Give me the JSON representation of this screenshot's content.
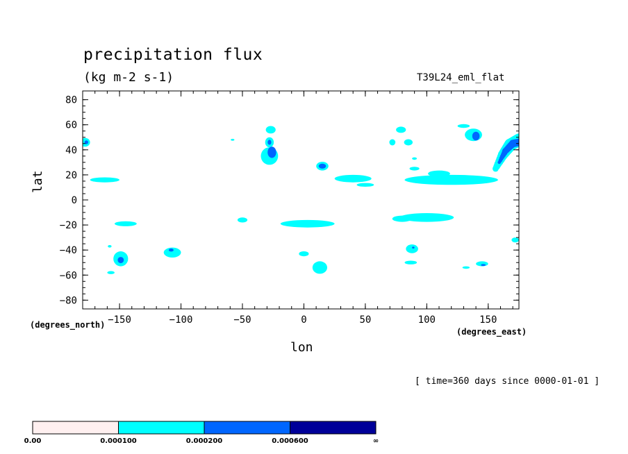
{
  "chart_data": {
    "type": "contour-map",
    "title": "precipitation flux",
    "units": "(kg m-2 s-1)",
    "experiment": "T39L24_eml_flat",
    "xlabel": "lon",
    "ylabel": "lat",
    "x_coord_units": "(degrees_east)",
    "y_coord_units": "(degrees_north)",
    "xlim": [
      -180,
      175
    ],
    "ylim": [
      -87,
      87
    ],
    "xticks": [
      -150,
      -100,
      -50,
      0,
      50,
      100,
      150
    ],
    "yticks": [
      80,
      60,
      40,
      20,
      0,
      -20,
      -40,
      -60,
      -80
    ],
    "time_label": "[ time=360 days since 0000-01-01 ]",
    "levels": [
      0.0,
      0.0001,
      0.0002,
      0.0006
    ],
    "colorbar": {
      "labels": [
        "0.00",
        "0.000100",
        "0.000200",
        "0.000600",
        "∞"
      ],
      "colors": [
        "#fff0f0",
        "#00ffff",
        "#0066ff",
        "#000099"
      ]
    },
    "regions": [
      {
        "lon": -178,
        "lat": 46,
        "rlon": 4,
        "rlat": 3.5,
        "level": 1
      },
      {
        "lon": -177,
        "lat": 46,
        "rlon": 1.5,
        "rlat": 1.5,
        "level": 2
      },
      {
        "lon": -162,
        "lat": 16,
        "rlon": 12,
        "rlat": 2,
        "level": 1
      },
      {
        "lon": -145,
        "lat": -19,
        "rlon": 9,
        "rlat": 2,
        "level": 1
      },
      {
        "lon": -149,
        "lat": -47,
        "rlon": 6,
        "rlat": 6,
        "level": 1
      },
      {
        "lon": -149,
        "lat": -48,
        "rlon": 2.5,
        "rlat": 2.5,
        "level": 2
      },
      {
        "lon": -157,
        "lat": -58,
        "rlon": 3,
        "rlat": 1.2,
        "level": 1
      },
      {
        "lon": -158,
        "lat": -37,
        "rlon": 1.5,
        "rlat": 1,
        "level": 1
      },
      {
        "lon": -107,
        "lat": -42,
        "rlon": 7,
        "rlat": 4,
        "level": 1
      },
      {
        "lon": -108,
        "lat": -40,
        "rlon": 2,
        "rlat": 1.2,
        "level": 2
      },
      {
        "lon": -50,
        "lat": -16,
        "rlon": 4,
        "rlat": 2,
        "level": 1
      },
      {
        "lon": -58,
        "lat": 48,
        "rlon": 1.5,
        "rlat": 0.8,
        "level": 1
      },
      {
        "lon": -27,
        "lat": 56,
        "rlon": 4,
        "rlat": 3,
        "level": 1
      },
      {
        "lon": -28,
        "lat": 46,
        "rlon": 3.5,
        "rlat": 4,
        "level": 1
      },
      {
        "lon": -28,
        "lat": 46,
        "rlon": 1.5,
        "rlat": 2,
        "level": 2
      },
      {
        "lon": -28,
        "lat": 35,
        "rlon": 7,
        "rlat": 7,
        "level": 1
      },
      {
        "lon": -26,
        "lat": 38,
        "rlon": 3.5,
        "rlat": 4.5,
        "level": 2
      },
      {
        "lon": 15,
        "lat": 27,
        "rlon": 5,
        "rlat": 3.5,
        "level": 1
      },
      {
        "lon": 15,
        "lat": 27,
        "rlon": 3,
        "rlat": 2,
        "level": 2
      },
      {
        "lon": 40,
        "lat": 17,
        "rlon": 15,
        "rlat": 3,
        "level": 1
      },
      {
        "lon": 50,
        "lat": 12,
        "rlon": 7,
        "rlat": 1.5,
        "level": 1
      },
      {
        "lon": 3,
        "lat": -19,
        "rlon": 22,
        "rlat": 3,
        "level": 1
      },
      {
        "lon": 0,
        "lat": -43,
        "rlon": 4,
        "rlat": 2,
        "level": 1
      },
      {
        "lon": 13,
        "lat": -54,
        "rlon": 6,
        "rlat": 5,
        "level": 1
      },
      {
        "lon": 79,
        "lat": 56,
        "rlon": 4,
        "rlat": 2.5,
        "level": 1
      },
      {
        "lon": 72,
        "lat": 46,
        "rlon": 2.5,
        "rlat": 2.5,
        "level": 1
      },
      {
        "lon": 85,
        "lat": 46,
        "rlon": 3.5,
        "rlat": 2.5,
        "level": 1
      },
      {
        "lon": 90,
        "lat": 33,
        "rlon": 2,
        "rlat": 1,
        "level": 1
      },
      {
        "lon": 90,
        "lat": 25,
        "rlon": 4,
        "rlat": 1.5,
        "level": 1
      },
      {
        "lon": 120,
        "lat": 16,
        "rlon": 38,
        "rlat": 4,
        "level": 1
      },
      {
        "lon": 110,
        "lat": 21,
        "rlon": 9,
        "rlat": 2.5,
        "level": 1
      },
      {
        "lon": 100,
        "lat": -14,
        "rlon": 22,
        "rlat": 3.5,
        "level": 1
      },
      {
        "lon": 80,
        "lat": -15,
        "rlon": 8,
        "rlat": 2.5,
        "level": 1
      },
      {
        "lon": 88,
        "lat": -39,
        "rlon": 5,
        "rlat": 3.5,
        "level": 1
      },
      {
        "lon": 89,
        "lat": -38,
        "rlon": 1,
        "rlat": 0.8,
        "level": 2
      },
      {
        "lon": 87,
        "lat": -50,
        "rlon": 5,
        "rlat": 1.5,
        "level": 1
      },
      {
        "lon": 138,
        "lat": 52,
        "rlon": 7,
        "rlat": 5,
        "level": 1
      },
      {
        "lon": 140,
        "lat": 51,
        "rlon": 3,
        "rlat": 3.5,
        "level": 2
      },
      {
        "lon": 130,
        "lat": 59,
        "rlon": 5,
        "rlat": 1.5,
        "level": 1
      },
      {
        "lon": 145,
        "lat": -51,
        "rlon": 5,
        "rlat": 2,
        "level": 1
      },
      {
        "lon": 146,
        "lat": -52,
        "rlon": 2,
        "rlat": 0.8,
        "level": 2
      },
      {
        "lon": 132,
        "lat": -54,
        "rlon": 3,
        "rlat": 1,
        "level": 1
      },
      {
        "lon": 172,
        "lat": -32,
        "rlon": 3,
        "rlat": 2,
        "level": 1
      }
    ],
    "bands": [
      {
        "points": [
          [
            156,
            25
          ],
          [
            162,
            36
          ],
          [
            168,
            44
          ],
          [
            175,
            48
          ]
        ],
        "widths": [
          2.5,
          4,
          5,
          5
        ],
        "level": 1
      },
      {
        "points": [
          [
            159,
            30
          ],
          [
            164,
            39
          ],
          [
            170,
            45
          ],
          [
            175,
            46
          ]
        ],
        "widths": [
          1.3,
          2.5,
          3,
          3
        ],
        "level": 2
      }
    ]
  }
}
